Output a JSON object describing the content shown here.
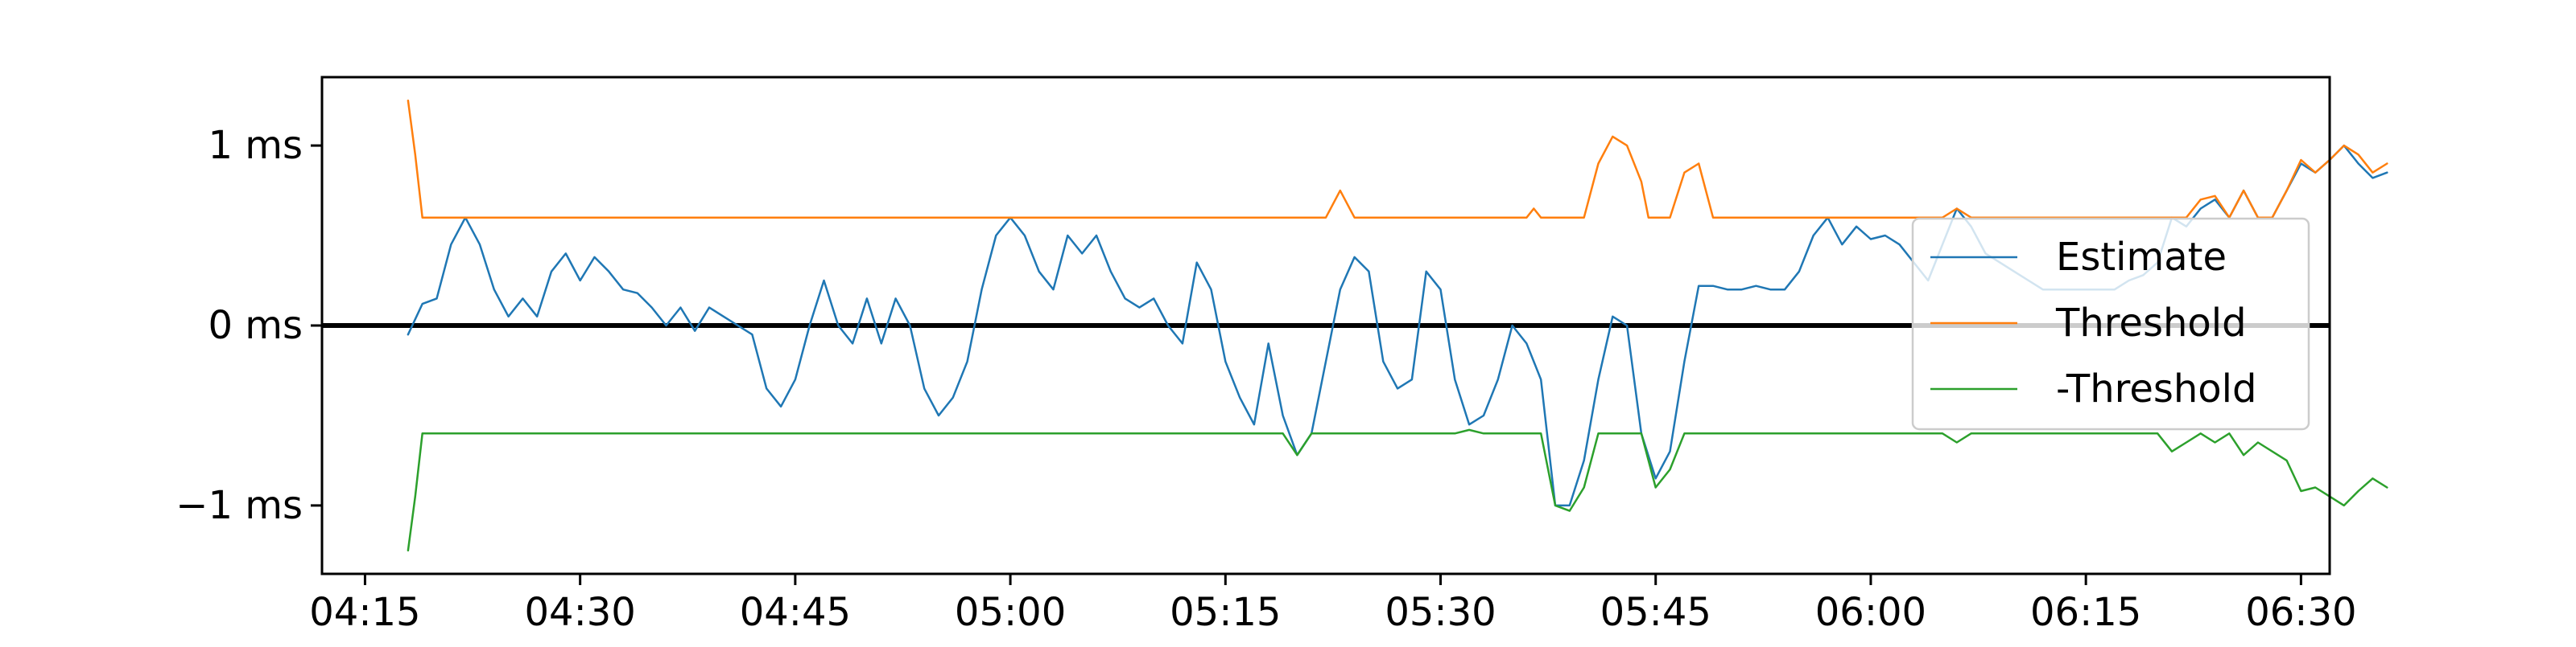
{
  "chart_data": {
    "type": "line",
    "title": "",
    "xlabel": "",
    "ylabel": "",
    "x_unit": "time of day (HH:MM)",
    "y_unit": "ms",
    "xlim": [
      "04:12",
      "06:32"
    ],
    "ylim": [
      -1.38,
      1.38
    ],
    "x_ticks": [
      "04:15",
      "04:30",
      "04:45",
      "05:00",
      "05:15",
      "05:30",
      "05:45",
      "06:00",
      "06:15",
      "06:30"
    ],
    "y_ticks": [
      {
        "value": 1,
        "label": "1 ms"
      },
      {
        "value": 0,
        "label": "0 ms"
      },
      {
        "value": -1,
        "label": "−1 ms"
      }
    ],
    "grid": false,
    "zero_line": true,
    "legend_position": "right",
    "series": [
      {
        "name": "Estimate",
        "color": "#1f77b4",
        "points": [
          [
            "04:18",
            -0.05
          ],
          [
            "04:19",
            0.12
          ],
          [
            "04:20",
            0.15
          ],
          [
            "04:21",
            0.45
          ],
          [
            "04:22",
            0.6
          ],
          [
            "04:23",
            0.45
          ],
          [
            "04:24",
            0.2
          ],
          [
            "04:25",
            0.05
          ],
          [
            "04:26",
            0.15
          ],
          [
            "04:27",
            0.05
          ],
          [
            "04:28",
            0.3
          ],
          [
            "04:29",
            0.4
          ],
          [
            "04:30",
            0.25
          ],
          [
            "04:31",
            0.38
          ],
          [
            "04:32",
            0.3
          ],
          [
            "04:33",
            0.2
          ],
          [
            "04:34",
            0.18
          ],
          [
            "04:35",
            0.1
          ],
          [
            "04:36",
            0.0
          ],
          [
            "04:37",
            0.1
          ],
          [
            "04:38",
            -0.03
          ],
          [
            "04:39",
            0.1
          ],
          [
            "04:40",
            0.05
          ],
          [
            "04:41",
            0.0
          ],
          [
            "04:42",
            -0.05
          ],
          [
            "04:43",
            -0.35
          ],
          [
            "04:44",
            -0.45
          ],
          [
            "04:45",
            -0.3
          ],
          [
            "04:46",
            0.0
          ],
          [
            "04:47",
            0.25
          ],
          [
            "04:48",
            0.0
          ],
          [
            "04:49",
            -0.1
          ],
          [
            "04:50",
            0.15
          ],
          [
            "04:51",
            -0.1
          ],
          [
            "04:52",
            0.15
          ],
          [
            "04:53",
            0.0
          ],
          [
            "04:54",
            -0.35
          ],
          [
            "04:55",
            -0.5
          ],
          [
            "04:56",
            -0.4
          ],
          [
            "04:57",
            -0.2
          ],
          [
            "04:58",
            0.2
          ],
          [
            "04:59",
            0.5
          ],
          [
            "05:00",
            0.6
          ],
          [
            "05:01",
            0.5
          ],
          [
            "05:02",
            0.3
          ],
          [
            "05:03",
            0.2
          ],
          [
            "05:04",
            0.5
          ],
          [
            "05:05",
            0.4
          ],
          [
            "05:06",
            0.5
          ],
          [
            "05:07",
            0.3
          ],
          [
            "05:08",
            0.15
          ],
          [
            "05:09",
            0.1
          ],
          [
            "05:10",
            0.15
          ],
          [
            "05:11",
            0.0
          ],
          [
            "05:12",
            -0.1
          ],
          [
            "05:13",
            0.35
          ],
          [
            "05:14",
            0.2
          ],
          [
            "05:15",
            -0.2
          ],
          [
            "05:16",
            -0.4
          ],
          [
            "05:17",
            -0.55
          ],
          [
            "05:18",
            -0.1
          ],
          [
            "05:19",
            -0.5
          ],
          [
            "05:20",
            -0.72
          ],
          [
            "05:21",
            -0.6
          ],
          [
            "05:22",
            -0.2
          ],
          [
            "05:23",
            0.2
          ],
          [
            "05:24",
            0.38
          ],
          [
            "05:25",
            0.3
          ],
          [
            "05:26",
            -0.2
          ],
          [
            "05:27",
            -0.35
          ],
          [
            "05:28",
            -0.3
          ],
          [
            "05:29",
            0.3
          ],
          [
            "05:30",
            0.2
          ],
          [
            "05:31",
            -0.3
          ],
          [
            "05:32",
            -0.55
          ],
          [
            "05:33",
            -0.5
          ],
          [
            "05:34",
            -0.3
          ],
          [
            "05:35",
            0.0
          ],
          [
            "05:36",
            -0.1
          ],
          [
            "05:37",
            -0.3
          ],
          [
            "05:38",
            -1.0
          ],
          [
            "05:39",
            -1.0
          ],
          [
            "05:40",
            -0.75
          ],
          [
            "05:41",
            -0.3
          ],
          [
            "05:42",
            0.05
          ],
          [
            "05:43",
            0.0
          ],
          [
            "05:44",
            -0.6
          ],
          [
            "05:45",
            -0.85
          ],
          [
            "05:46",
            -0.7
          ],
          [
            "05:47",
            -0.2
          ],
          [
            "05:48",
            0.22
          ],
          [
            "05:49",
            0.22
          ],
          [
            "05:50",
            0.2
          ],
          [
            "05:51",
            0.2
          ],
          [
            "05:52",
            0.22
          ],
          [
            "05:53",
            0.2
          ],
          [
            "05:54",
            0.2
          ],
          [
            "05:55",
            0.3
          ],
          [
            "05:56",
            0.5
          ],
          [
            "05:57",
            0.6
          ],
          [
            "05:58",
            0.45
          ],
          [
            "05:59",
            0.55
          ],
          [
            "06:00",
            0.48
          ],
          [
            "06:01",
            0.5
          ],
          [
            "06:02",
            0.45
          ],
          [
            "06:03",
            0.35
          ],
          [
            "06:04",
            0.25
          ],
          [
            "06:05",
            0.45
          ],
          [
            "06:06",
            0.65
          ],
          [
            "06:07",
            0.55
          ],
          [
            "06:08",
            0.4
          ],
          [
            "06:09",
            0.35
          ],
          [
            "06:10",
            0.3
          ],
          [
            "06:11",
            0.25
          ],
          [
            "06:12",
            0.2
          ],
          [
            "06:13",
            0.2
          ],
          [
            "06:14",
            0.2
          ],
          [
            "06:15",
            0.2
          ],
          [
            "06:16",
            0.2
          ],
          [
            "06:17",
            0.2
          ],
          [
            "06:18",
            0.25
          ],
          [
            "06:19",
            0.28
          ],
          [
            "06:20",
            0.35
          ],
          [
            "06:21",
            0.6
          ],
          [
            "06:22",
            0.55
          ],
          [
            "06:23",
            0.65
          ],
          [
            "06:24",
            0.7
          ],
          [
            "06:25",
            0.6
          ],
          [
            "06:26",
            0.75
          ],
          [
            "06:27",
            0.6
          ],
          [
            "06:28",
            0.6
          ],
          [
            "06:29",
            0.75
          ],
          [
            "06:30",
            0.9
          ],
          [
            "06:31",
            0.85
          ],
          [
            "06:32",
            0.92
          ],
          [
            "06:33",
            1.0
          ],
          [
            "06:34",
            0.9
          ],
          [
            "06:35",
            0.82
          ],
          [
            "06:36",
            0.85
          ]
        ]
      },
      {
        "name": "Threshold",
        "color": "#ff7f0e",
        "points": [
          [
            "04:18",
            1.25
          ],
          [
            "04:18:30",
            0.95
          ],
          [
            "04:19",
            0.6
          ],
          [
            "05:03",
            0.6
          ],
          [
            "05:20",
            0.6
          ],
          [
            "05:22",
            0.6
          ],
          [
            "05:23",
            0.75
          ],
          [
            "05:24",
            0.6
          ],
          [
            "05:36",
            0.6
          ],
          [
            "05:36:30",
            0.65
          ],
          [
            "05:37",
            0.6
          ],
          [
            "05:40",
            0.6
          ],
          [
            "05:41",
            0.9
          ],
          [
            "05:42",
            1.05
          ],
          [
            "05:43",
            1.0
          ],
          [
            "05:44",
            0.8
          ],
          [
            "05:44:30",
            0.6
          ],
          [
            "05:46",
            0.6
          ],
          [
            "05:47",
            0.85
          ],
          [
            "05:48",
            0.9
          ],
          [
            "05:49",
            0.6
          ],
          [
            "06:02",
            0.6
          ],
          [
            "06:05",
            0.6
          ],
          [
            "06:06",
            0.65
          ],
          [
            "06:07",
            0.6
          ],
          [
            "06:20",
            0.6
          ],
          [
            "06:22",
            0.6
          ],
          [
            "06:23",
            0.7
          ],
          [
            "06:24",
            0.72
          ],
          [
            "06:25",
            0.6
          ],
          [
            "06:26",
            0.75
          ],
          [
            "06:27",
            0.6
          ],
          [
            "06:28",
            0.6
          ],
          [
            "06:29",
            0.75
          ],
          [
            "06:30",
            0.92
          ],
          [
            "06:31",
            0.85
          ],
          [
            "06:32",
            0.92
          ],
          [
            "06:33",
            1.0
          ],
          [
            "06:34",
            0.95
          ],
          [
            "06:35",
            0.85
          ],
          [
            "06:36",
            0.9
          ]
        ]
      },
      {
        "name": "-Threshold",
        "color": "#2ca02c",
        "points": [
          [
            "04:18",
            -1.25
          ],
          [
            "04:18:30",
            -0.95
          ],
          [
            "04:19",
            -0.6
          ],
          [
            "05:03",
            -0.6
          ],
          [
            "05:05",
            -0.6
          ],
          [
            "05:19",
            -0.6
          ],
          [
            "05:20",
            -0.72
          ],
          [
            "05:21",
            -0.6
          ],
          [
            "05:31",
            -0.6
          ],
          [
            "05:32",
            -0.58
          ],
          [
            "05:33",
            -0.6
          ],
          [
            "05:37",
            -0.6
          ],
          [
            "05:38",
            -1.0
          ],
          [
            "05:39",
            -1.03
          ],
          [
            "05:40",
            -0.9
          ],
          [
            "05:41",
            -0.6
          ],
          [
            "05:44",
            -0.6
          ],
          [
            "05:45",
            -0.9
          ],
          [
            "05:46",
            -0.8
          ],
          [
            "05:47",
            -0.6
          ],
          [
            "06:05",
            -0.6
          ],
          [
            "06:06",
            -0.65
          ],
          [
            "06:07",
            -0.6
          ],
          [
            "06:20",
            -0.6
          ],
          [
            "06:21",
            -0.7
          ],
          [
            "06:22",
            -0.65
          ],
          [
            "06:23",
            -0.6
          ],
          [
            "06:24",
            -0.65
          ],
          [
            "06:25",
            -0.6
          ],
          [
            "06:26",
            -0.72
          ],
          [
            "06:27",
            -0.65
          ],
          [
            "06:29",
            -0.75
          ],
          [
            "06:30",
            -0.92
          ],
          [
            "06:31",
            -0.9
          ],
          [
            "06:32",
            -0.95
          ],
          [
            "06:33",
            -1.0
          ],
          [
            "06:34",
            -0.92
          ],
          [
            "06:35",
            -0.85
          ],
          [
            "06:36",
            -0.9
          ]
        ]
      }
    ]
  }
}
